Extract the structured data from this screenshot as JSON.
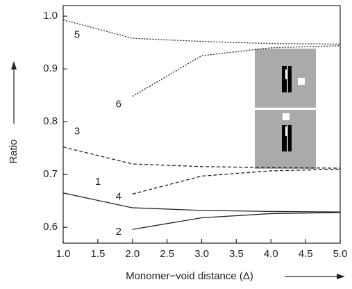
{
  "chart_data": {
    "type": "line",
    "x_label": "Monomer−void distance (Δ)",
    "y_label": "Ratio",
    "x": [
      1.0,
      2.0,
      3.0,
      4.0,
      5.0
    ],
    "series": [
      {
        "name": "1",
        "color": "#222222",
        "style": "solid",
        "values": [
          0.665,
          0.637,
          0.632,
          0.63,
          0.629
        ]
      },
      {
        "name": "2",
        "color": "#222222",
        "style": "solid",
        "values": [
          null,
          0.596,
          0.618,
          0.626,
          0.628
        ]
      },
      {
        "name": "3",
        "color": "#222222",
        "style": "dashed",
        "values": [
          0.752,
          0.72,
          0.715,
          0.713,
          0.712
        ]
      },
      {
        "name": "4",
        "color": "#222222",
        "style": "dashed",
        "values": [
          null,
          0.663,
          0.697,
          0.707,
          0.71
        ]
      },
      {
        "name": "5",
        "color": "#222222",
        "style": "dotted",
        "values": [
          0.993,
          0.958,
          0.952,
          0.948,
          0.947
        ]
      },
      {
        "name": "6",
        "color": "#222222",
        "style": "dotted",
        "values": [
          null,
          0.848,
          0.925,
          0.94,
          0.944
        ]
      }
    ],
    "xlim": [
      1.0,
      5.0
    ],
    "ylim": [
      0.57,
      1.02
    ],
    "xticks": [
      {
        "value": 1.0,
        "label": "1.0"
      },
      1.5,
      {
        "value": 2.0,
        "label": "2.0"
      },
      2.5,
      {
        "value": 3.0,
        "label": "3.0"
      },
      3.5,
      {
        "value": 4.0,
        "label": "4.0"
      },
      4.5,
      {
        "value": 5.0,
        "label": "5.0"
      }
    ],
    "yticks": [
      0.6,
      0.7,
      0.8,
      0.9,
      {
        "value": 1.0,
        "label": "1.0"
      }
    ],
    "grid": false
  }
}
